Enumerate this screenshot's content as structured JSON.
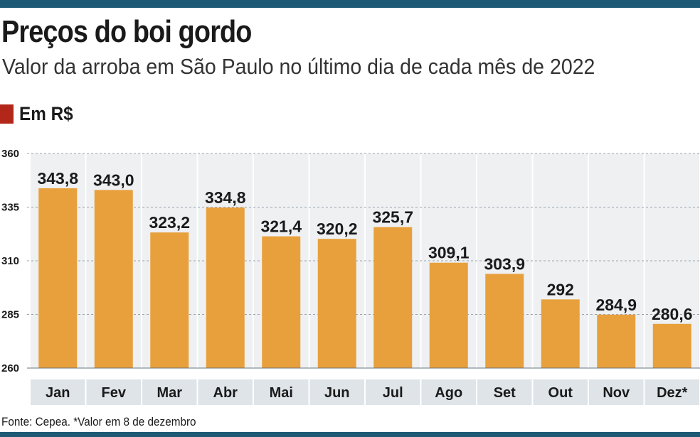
{
  "colors": {
    "rule": "#1d5875",
    "bar": "#e8a03c",
    "legend_swatch": "#b3271b",
    "panel": "#eef0f2",
    "category_band": "#dfe4e9"
  },
  "chart_data": {
    "type": "bar",
    "title": "Preços do boi gordo",
    "subtitle": "Valor da arroba em São Paulo no último dia de cada mês de 2022",
    "legend": "Em R$",
    "categories": [
      "Jan",
      "Fev",
      "Mar",
      "Abr",
      "Mai",
      "Jun",
      "Jul",
      "Ago",
      "Set",
      "Out",
      "Nov",
      "Dez*"
    ],
    "values": [
      343.8,
      343.0,
      323.2,
      334.8,
      321.4,
      320.2,
      325.7,
      309.1,
      303.9,
      292,
      284.9,
      280.6
    ],
    "value_labels": [
      "343,8",
      "343,0",
      "323,2",
      "334,8",
      "321,4",
      "320,2",
      "325,7",
      "309,1",
      "303,9",
      "292",
      "284,9",
      "280,6"
    ],
    "ylim": [
      260,
      360
    ],
    "yticks": [
      260,
      285,
      310,
      335,
      360
    ],
    "grid": true,
    "source": "Fonte: Cepea. *Valor em 8 de dezembro"
  }
}
